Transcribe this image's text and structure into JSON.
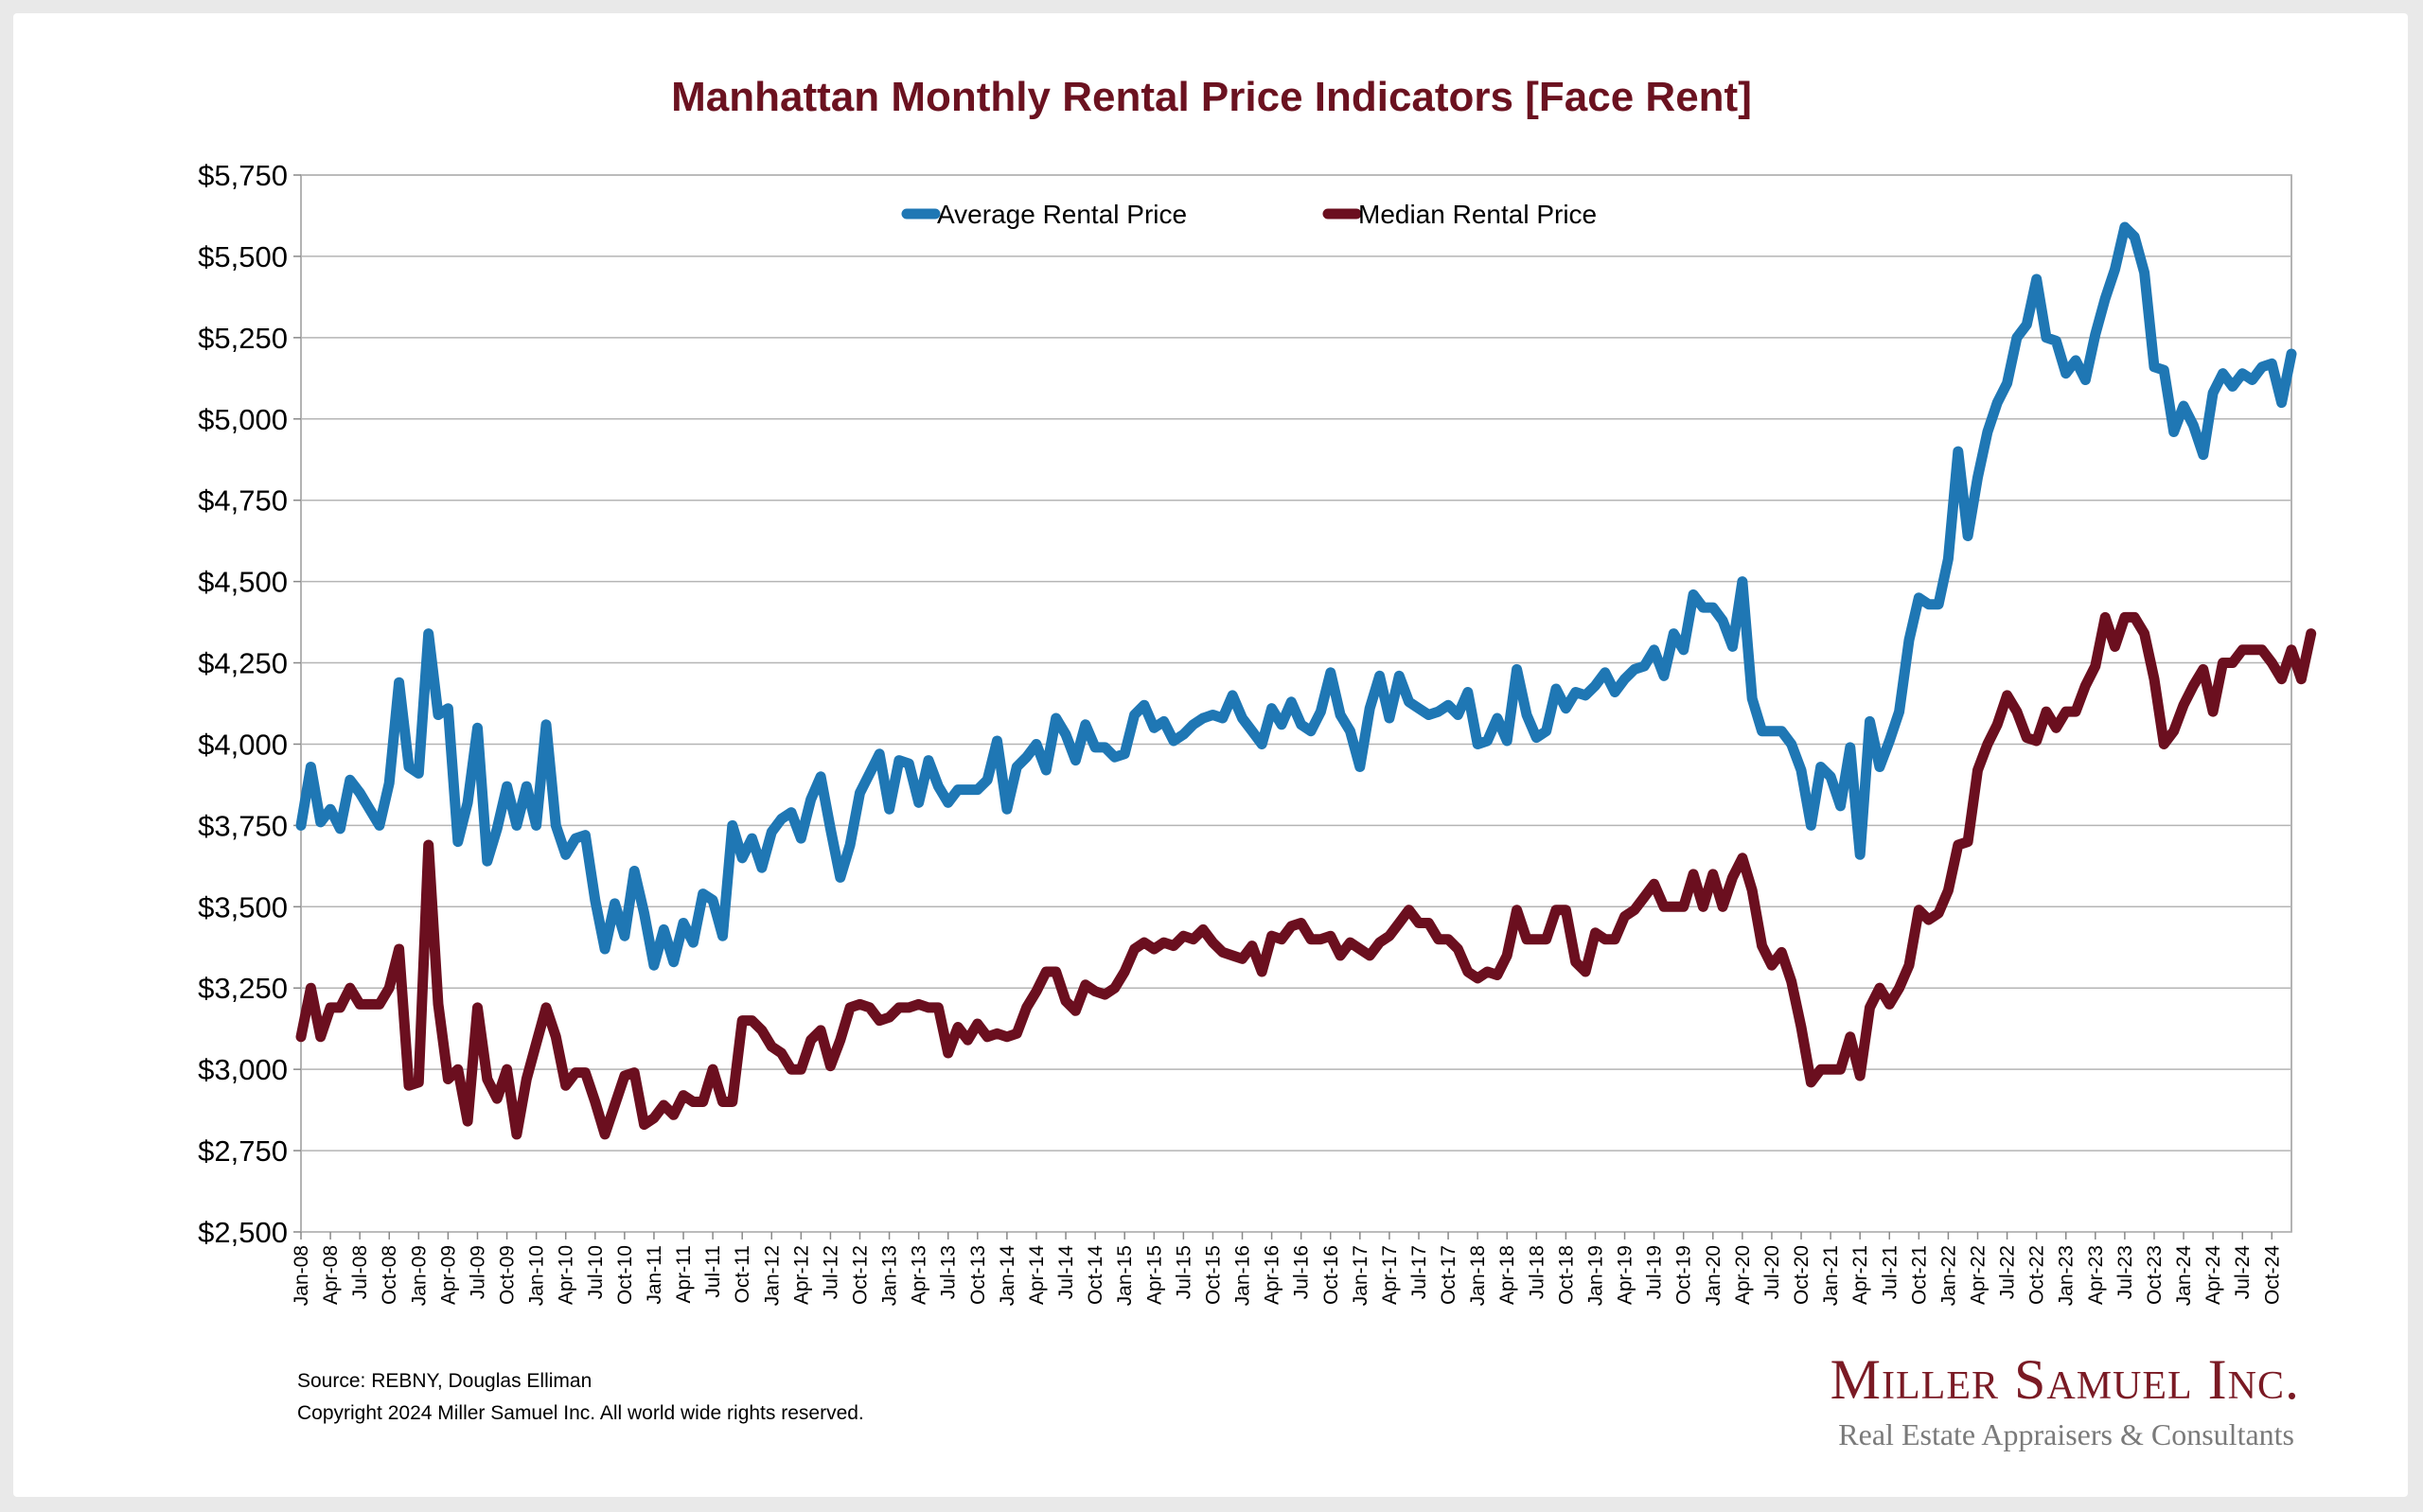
{
  "chart_data": {
    "type": "line",
    "title": "Manhattan Monthly Rental Price Indicators [Face Rent]",
    "ylim": [
      2500,
      5750
    ],
    "ytick_step": 250,
    "ytick_labels": [
      "$2,500",
      "$2,750",
      "$3,000",
      "$3,250",
      "$3,500",
      "$3,750",
      "$4,000",
      "$4,250",
      "$4,500",
      "$4,750",
      "$5,000",
      "$5,250",
      "$5,500",
      "$5,750"
    ],
    "grid": "horizontal",
    "legend_position": "top-center",
    "xtick_labels": [
      "Jan-08",
      "Apr-08",
      "Jul-08",
      "Oct-08",
      "Jan-09",
      "Apr-09",
      "Jul-09",
      "Oct-09",
      "Jan-10",
      "Apr-10",
      "Jul-10",
      "Oct-10",
      "Jan-11",
      "Apr-11",
      "Jul-11",
      "Oct-11",
      "Jan-12",
      "Apr-12",
      "Jul-12",
      "Oct-12",
      "Jan-13",
      "Apr-13",
      "Jul-13",
      "Oct-13",
      "Jan-14",
      "Apr-14",
      "Jul-14",
      "Oct-14",
      "Jan-15",
      "Apr-15",
      "Jul-15",
      "Oct-15",
      "Jan-16",
      "Apr-16",
      "Jul-16",
      "Oct-16",
      "Jan-17",
      "Apr-17",
      "Jul-17",
      "Oct-17",
      "Jan-18",
      "Apr-18",
      "Jul-18",
      "Oct-18",
      "Jan-19",
      "Apr-19",
      "Jul-19",
      "Oct-19",
      "Jan-20",
      "Apr-20",
      "Jul-20",
      "Oct-20",
      "Jan-21",
      "Apr-21",
      "Jul-21",
      "Oct-21",
      "Jan-22",
      "Apr-22",
      "Jul-22",
      "Oct-22",
      "Jan-23",
      "Apr-23",
      "Jul-23",
      "Oct-23",
      "Jan-24",
      "Apr-24",
      "Jul-24",
      "Oct-24"
    ],
    "x_start": "Jan-08",
    "x_end": "Dec-24",
    "series": [
      {
        "name": "Average Rental Price",
        "color": "#1f77b4",
        "values": [
          3750,
          3930,
          3760,
          3800,
          3740,
          3890,
          3850,
          3800,
          3750,
          3880,
          4190,
          3930,
          3910,
          4340,
          4090,
          4110,
          3700,
          3820,
          4050,
          3640,
          3740,
          3870,
          3750,
          3870,
          3750,
          4060,
          3750,
          3660,
          3710,
          3720,
          3520,
          3370,
          3510,
          3410,
          3610,
          3480,
          3320,
          3430,
          3330,
          3450,
          3390,
          3540,
          3520,
          3410,
          3750,
          3650,
          3710,
          3620,
          3730,
          3770,
          3790,
          3710,
          3830,
          3900,
          3740,
          3590,
          3690,
          3850,
          3910,
          3970,
          3800,
          3950,
          3940,
          3820,
          3950,
          3870,
          3820,
          3860,
          3860,
          3860,
          3890,
          4010,
          3800,
          3930,
          3960,
          4000,
          3920,
          4080,
          4030,
          3950,
          4060,
          3990,
          3990,
          3960,
          3970,
          4090,
          4120,
          4050,
          4070,
          4010,
          4030,
          4060,
          4080,
          4090,
          4080,
          4150,
          4080,
          4040,
          4000,
          4110,
          4060,
          4130,
          4060,
          4040,
          4100,
          4220,
          4090,
          4040,
          3930,
          4110,
          4210,
          4080,
          4210,
          4130,
          4110,
          4090,
          4100,
          4120,
          4090,
          4160,
          4000,
          4010,
          4080,
          4010,
          4230,
          4090,
          4020,
          4040,
          4170,
          4110,
          4160,
          4150,
          4180,
          4220,
          4160,
          4200,
          4230,
          4240,
          4290,
          4210,
          4340,
          4290,
          4460,
          4420,
          4420,
          4380,
          4300,
          4500,
          4140,
          4040,
          4040,
          4040,
          4000,
          3920,
          3750,
          3930,
          3900,
          3810,
          3990,
          3660,
          4070,
          3930,
          4010,
          4100,
          4320,
          4450,
          4430,
          4430,
          4570,
          4900,
          4640,
          4820,
          4960,
          5050,
          5110,
          5250,
          5290,
          5430,
          5250,
          5240,
          5140,
          5180,
          5120,
          5260,
          5370,
          5460,
          5590,
          5560,
          5450,
          5160,
          5150,
          4960,
          5040,
          4980,
          4890,
          5080,
          5140,
          5100,
          5140,
          5120,
          5160,
          5170,
          5050,
          5200
        ]
      },
      {
        "name": "Median Rental Price",
        "color": "#6b0f1f",
        "values": [
          3100,
          3250,
          3100,
          3190,
          3190,
          3250,
          3200,
          3200,
          3200,
          3250,
          3370,
          2950,
          2960,
          3690,
          3200,
          2970,
          3000,
          2840,
          3190,
          2970,
          2910,
          3000,
          2800,
          2970,
          3080,
          3190,
          3100,
          2950,
          2990,
          2990,
          2900,
          2800,
          2890,
          2980,
          2990,
          2830,
          2850,
          2890,
          2860,
          2920,
          2900,
          2900,
          3000,
          2900,
          2900,
          3150,
          3150,
          3120,
          3070,
          3050,
          3000,
          3000,
          3090,
          3120,
          3010,
          3090,
          3190,
          3200,
          3190,
          3150,
          3160,
          3190,
          3190,
          3200,
          3190,
          3190,
          3050,
          3130,
          3090,
          3140,
          3100,
          3110,
          3100,
          3110,
          3190,
          3240,
          3300,
          3300,
          3210,
          3180,
          3260,
          3240,
          3230,
          3250,
          3300,
          3370,
          3390,
          3370,
          3390,
          3380,
          3410,
          3400,
          3430,
          3390,
          3360,
          3350,
          3340,
          3380,
          3300,
          3410,
          3400,
          3440,
          3450,
          3400,
          3400,
          3410,
          3350,
          3390,
          3370,
          3350,
          3390,
          3410,
          3450,
          3490,
          3450,
          3450,
          3400,
          3400,
          3370,
          3300,
          3280,
          3300,
          3290,
          3350,
          3490,
          3400,
          3400,
          3400,
          3490,
          3490,
          3330,
          3300,
          3420,
          3400,
          3400,
          3470,
          3490,
          3530,
          3570,
          3500,
          3500,
          3500,
          3600,
          3500,
          3600,
          3500,
          3590,
          3650,
          3550,
          3380,
          3320,
          3360,
          3270,
          3130,
          2960,
          3000,
          3000,
          3000,
          3100,
          2980,
          3190,
          3250,
          3200,
          3250,
          3320,
          3490,
          3460,
          3480,
          3550,
          3690,
          3700,
          3920,
          4000,
          4060,
          4150,
          4100,
          4020,
          4010,
          4100,
          4050,
          4100,
          4100,
          4180,
          4240,
          4390,
          4300,
          4390,
          4390,
          4340,
          4200,
          4000,
          4040,
          4120,
          4180,
          4230,
          4100,
          4250,
          4250,
          4290,
          4290,
          4290,
          4250,
          4200,
          4290,
          4200,
          4340
        ]
      }
    ]
  },
  "footer": {
    "source": "Source: REBNY, Douglas Elliman",
    "copyright": "Copyright 2024 Miller Samuel Inc.  All world wide rights reserved."
  },
  "brand": {
    "name": "Miller Samuel Inc.",
    "tagline": "Real Estate Appraisers & Consultants"
  }
}
